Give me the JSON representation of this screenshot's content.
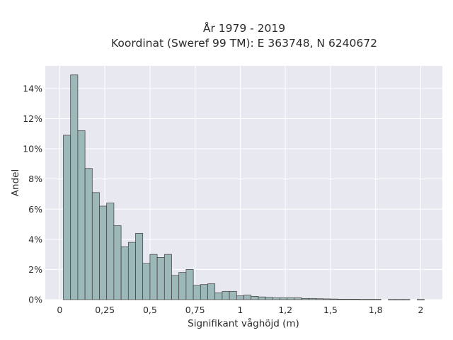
{
  "chart_data": {
    "type": "bar",
    "title": "År 1979 - 2019",
    "subtitle": "Koordinat (Sweref 99 TM): E 363748, N 6240672",
    "xlabel": "Signifikant våghöjd (m)",
    "ylabel": "Andel",
    "xlim": [
      -0.08,
      2.12
    ],
    "ylim": [
      0,
      0.155
    ],
    "grid": true,
    "bin_width": 0.04,
    "bin_start": 0.02,
    "x_ticks": [
      {
        "value": 0,
        "label": "0"
      },
      {
        "value": 0.25,
        "label": "0,25"
      },
      {
        "value": 0.5,
        "label": "0,5"
      },
      {
        "value": 0.75,
        "label": "0,75"
      },
      {
        "value": 1,
        "label": "1"
      },
      {
        "value": 1.25,
        "label": "1,2"
      },
      {
        "value": 1.5,
        "label": "1,5"
      },
      {
        "value": 1.75,
        "label": "1,8"
      },
      {
        "value": 2,
        "label": "2"
      }
    ],
    "y_ticks": [
      {
        "value": 0,
        "label": "0%"
      },
      {
        "value": 0.02,
        "label": "2%"
      },
      {
        "value": 0.04,
        "label": "4%"
      },
      {
        "value": 0.06,
        "label": "6%"
      },
      {
        "value": 0.08,
        "label": "8%"
      },
      {
        "value": 0.1,
        "label": "10%"
      },
      {
        "value": 0.12,
        "label": "12%"
      },
      {
        "value": 0.14,
        "label": "14%"
      }
    ],
    "values": [
      0.109,
      0.149,
      0.112,
      0.087,
      0.071,
      0.062,
      0.064,
      0.049,
      0.035,
      0.038,
      0.044,
      0.024,
      0.03,
      0.028,
      0.03,
      0.016,
      0.018,
      0.02,
      0.0095,
      0.01,
      0.0105,
      0.0045,
      0.0055,
      0.0055,
      0.0025,
      0.003,
      0.0022,
      0.0018,
      0.0015,
      0.0012,
      0.0012,
      0.0012,
      0.0012,
      0.0008,
      0.0008,
      0.0006,
      0.0005,
      0.0004,
      0.0003,
      0.0003,
      0.0003,
      0.0002,
      0.0002,
      0.0002,
      0,
      0.0001,
      0.0001,
      0.0001,
      0,
      0.0001
    ],
    "colors": {
      "bar_fill": "#9db8b8",
      "bar_stroke": "#3b3b3b",
      "plot_bg": "#e8e8f1",
      "grid": "#ffffff"
    }
  }
}
